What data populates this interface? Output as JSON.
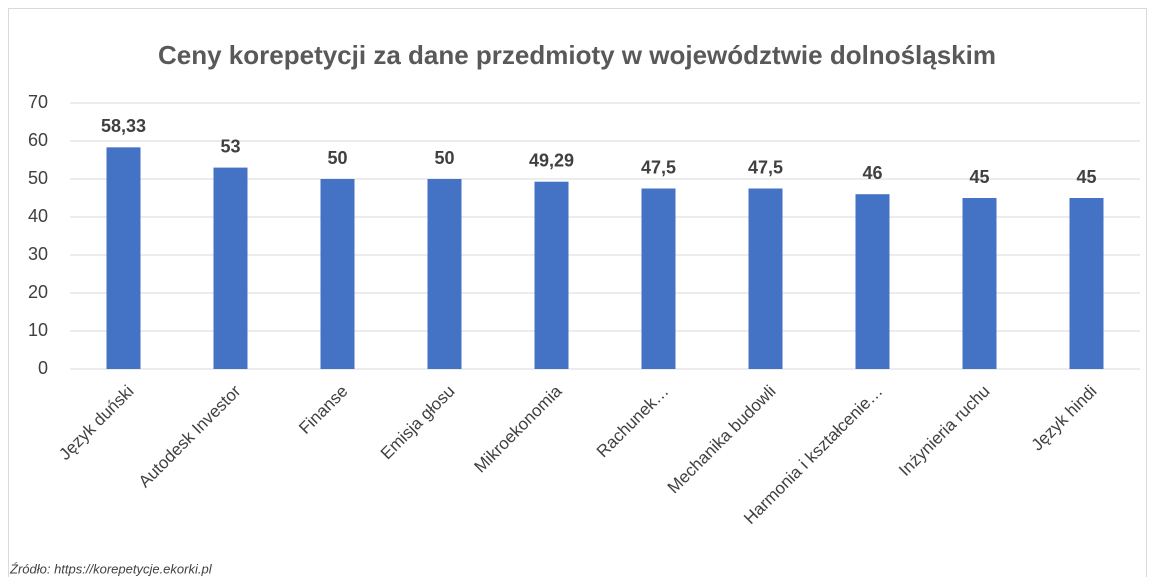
{
  "chart_data": {
    "type": "bar",
    "title": "Ceny korepetycji za dane przedmioty w województwie dolnośląskim",
    "categories": [
      "Język duński",
      "Autodesk Investor",
      "Finanse",
      "Emisja głosu",
      "Mikroekonomia",
      "Rachunek…",
      "Mechanika budowli",
      "Harmonia i kształcenie…",
      "Inżynieria ruchu",
      "Język hindi"
    ],
    "values": [
      58.33,
      53,
      50,
      50,
      49.29,
      47.5,
      47.5,
      46,
      45,
      45
    ],
    "value_labels": [
      "58,33",
      "53",
      "50",
      "50",
      "49,29",
      "47,5",
      "47,5",
      "46",
      "45",
      "45"
    ],
    "color": "#4472c4",
    "ylim": [
      0,
      70
    ],
    "yticks": [
      0,
      10,
      20,
      30,
      40,
      50,
      60,
      70
    ],
    "grid": true,
    "source": "Źródło: https://korepetycje.ekorki.pl"
  }
}
